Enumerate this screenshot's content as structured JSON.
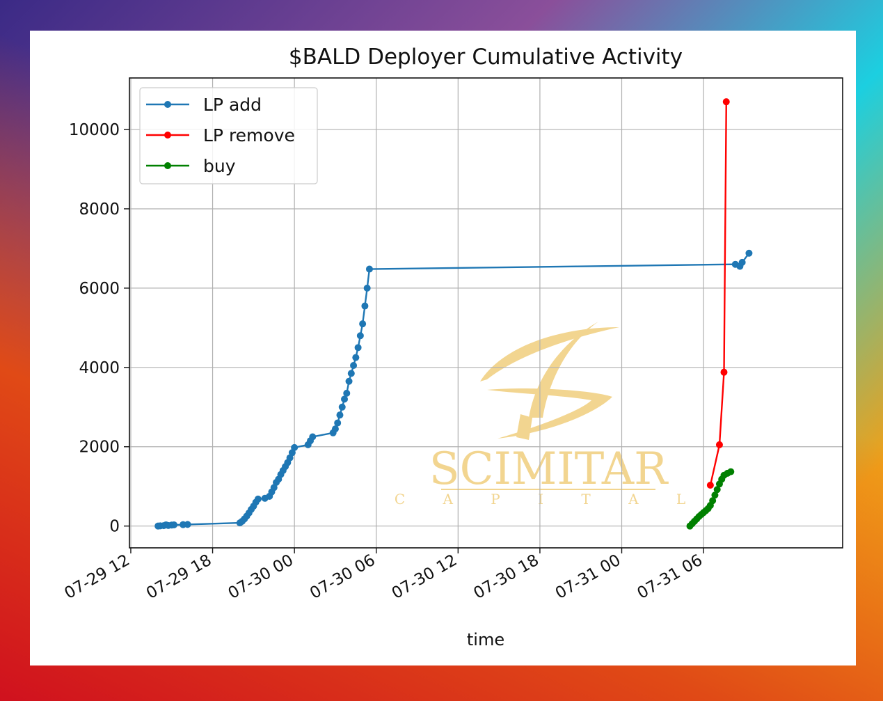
{
  "chart_data": {
    "type": "line",
    "title": "$BALD Deployer Cumulative Activity",
    "xlabel": "time",
    "ylabel": "",
    "x_ticks": [
      "07-29 12",
      "07-29 18",
      "07-30 00",
      "07-30 06",
      "07-30 12",
      "07-30 18",
      "07-31 00",
      "07-31 06"
    ],
    "y_ticks": [
      "0",
      "2000",
      "4000",
      "6000",
      "8000",
      "10000"
    ],
    "xlim": [
      "2023-07-29T11:54",
      "2023-07-31T16:12"
    ],
    "ylim": [
      -550,
      11300
    ],
    "grid": true,
    "legend_position": "top-left",
    "series": [
      {
        "name": "LP add",
        "color": "#1f77b4",
        "points": [
          [
            "2023-07-29T14:00",
            0
          ],
          [
            "2023-07-29T14:10",
            5
          ],
          [
            "2023-07-29T14:25",
            10
          ],
          [
            "2023-07-29T14:35",
            30
          ],
          [
            "2023-07-29T14:45",
            15
          ],
          [
            "2023-07-29T15:00",
            25
          ],
          [
            "2023-07-29T15:10",
            30
          ],
          [
            "2023-07-29T15:50",
            35
          ],
          [
            "2023-07-29T16:10",
            40
          ],
          [
            "2023-07-29T20:00",
            80
          ],
          [
            "2023-07-29T20:10",
            120
          ],
          [
            "2023-07-29T20:20",
            180
          ],
          [
            "2023-07-29T20:30",
            250
          ],
          [
            "2023-07-29T20:40",
            330
          ],
          [
            "2023-07-29T20:50",
            420
          ],
          [
            "2023-07-29T21:00",
            500
          ],
          [
            "2023-07-29T21:10",
            600
          ],
          [
            "2023-07-29T21:20",
            680
          ],
          [
            "2023-07-29T21:50",
            700
          ],
          [
            "2023-07-29T22:10",
            750
          ],
          [
            "2023-07-29T22:20",
            860
          ],
          [
            "2023-07-29T22:30",
            970
          ],
          [
            "2023-07-29T22:40",
            1100
          ],
          [
            "2023-07-29T22:50",
            1180
          ],
          [
            "2023-07-29T23:00",
            1300
          ],
          [
            "2023-07-29T23:10",
            1400
          ],
          [
            "2023-07-29T23:20",
            1500
          ],
          [
            "2023-07-29T23:30",
            1600
          ],
          [
            "2023-07-29T23:40",
            1720
          ],
          [
            "2023-07-29T23:50",
            1850
          ],
          [
            "2023-07-30T00:00",
            1980
          ],
          [
            "2023-07-30T01:00",
            2050
          ],
          [
            "2023-07-30T01:10",
            2150
          ],
          [
            "2023-07-30T01:20",
            2250
          ],
          [
            "2023-07-30T02:50",
            2350
          ],
          [
            "2023-07-30T03:00",
            2450
          ],
          [
            "2023-07-30T03:10",
            2600
          ],
          [
            "2023-07-30T03:20",
            2800
          ],
          [
            "2023-07-30T03:30",
            3000
          ],
          [
            "2023-07-30T03:40",
            3200
          ],
          [
            "2023-07-30T03:50",
            3350
          ],
          [
            "2023-07-30T04:00",
            3650
          ],
          [
            "2023-07-30T04:10",
            3850
          ],
          [
            "2023-07-30T04:20",
            4050
          ],
          [
            "2023-07-30T04:30",
            4250
          ],
          [
            "2023-07-30T04:40",
            4500
          ],
          [
            "2023-07-30T04:50",
            4800
          ],
          [
            "2023-07-30T05:00",
            5100
          ],
          [
            "2023-07-30T05:10",
            5550
          ],
          [
            "2023-07-30T05:20",
            6000
          ],
          [
            "2023-07-30T05:30",
            6480
          ],
          [
            "2023-07-31T08:20",
            6600
          ],
          [
            "2023-07-31T08:40",
            6550
          ],
          [
            "2023-07-31T08:50",
            6650
          ],
          [
            "2023-07-31T09:20",
            6880
          ]
        ]
      },
      {
        "name": "LP remove",
        "color": "#ff0000",
        "points": [
          [
            "2023-07-31T06:30",
            1030
          ],
          [
            "2023-07-31T07:10",
            2050
          ],
          [
            "2023-07-31T07:30",
            3880
          ],
          [
            "2023-07-31T07:40",
            10700
          ]
        ]
      },
      {
        "name": "buy",
        "color": "#008000",
        "points": [
          [
            "2023-07-31T05:00",
            0
          ],
          [
            "2023-07-31T05:10",
            60
          ],
          [
            "2023-07-31T05:20",
            120
          ],
          [
            "2023-07-31T05:30",
            180
          ],
          [
            "2023-07-31T05:40",
            240
          ],
          [
            "2023-07-31T05:50",
            290
          ],
          [
            "2023-07-31T06:00",
            340
          ],
          [
            "2023-07-31T06:10",
            390
          ],
          [
            "2023-07-31T06:20",
            440
          ],
          [
            "2023-07-31T06:30",
            520
          ],
          [
            "2023-07-31T06:40",
            640
          ],
          [
            "2023-07-31T06:50",
            780
          ],
          [
            "2023-07-31T07:00",
            920
          ],
          [
            "2023-07-31T07:10",
            1060
          ],
          [
            "2023-07-31T07:20",
            1180
          ],
          [
            "2023-07-31T07:30",
            1280
          ],
          [
            "2023-07-31T07:45",
            1330
          ],
          [
            "2023-07-31T08:00",
            1370
          ]
        ]
      }
    ]
  },
  "watermark": {
    "word": "SCIMITAR",
    "subword": "C A P I T A L",
    "color": "#f1d184"
  }
}
